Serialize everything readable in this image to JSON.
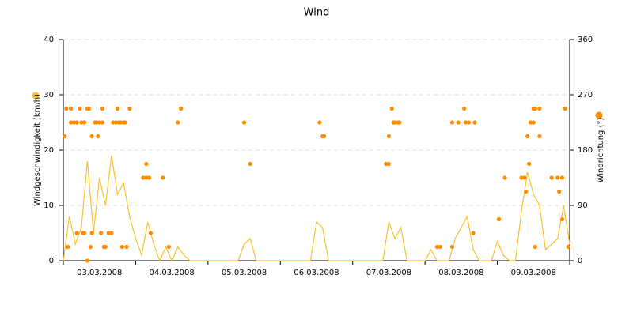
{
  "chart_data": {
    "type": "line",
    "title": "Wind",
    "xlim": [
      0,
      168
    ],
    "xticks": [
      {
        "value": 12,
        "label": "03.03.2008"
      },
      {
        "value": 36,
        "label": "04.03.2008"
      },
      {
        "value": 60,
        "label": "05.03.2008"
      },
      {
        "value": 84,
        "label": "06.03.2008"
      },
      {
        "value": 108,
        "label": "07.03.2008"
      },
      {
        "value": 132,
        "label": "08.03.2008"
      },
      {
        "value": 156,
        "label": "09.03.2008"
      }
    ],
    "ylim": [
      0,
      40
    ],
    "yticks": [
      0,
      10,
      20,
      30,
      40
    ],
    "y2lim": [
      0,
      360
    ],
    "y2ticks": [
      0,
      90,
      180,
      270,
      360
    ],
    "grid": true,
    "series": [
      {
        "name": "Windgeschwindigkeit (km/h)",
        "type": "line",
        "color": "#f9c22e",
        "x": [
          0,
          2,
          4,
          6,
          8,
          10,
          12,
          14,
          16,
          18,
          20,
          22,
          24,
          26,
          28,
          30,
          32,
          34,
          36,
          38,
          40,
          42,
          44,
          46,
          48,
          50,
          52,
          54,
          56,
          58,
          60,
          62,
          64,
          66,
          68,
          70,
          72,
          74,
          76,
          78,
          80,
          82,
          84,
          86,
          88,
          90,
          92,
          94,
          96,
          98,
          100,
          102,
          104,
          106,
          108,
          110,
          112,
          114,
          116,
          118,
          120,
          122,
          124,
          126,
          128,
          130,
          132,
          134,
          136,
          138,
          140,
          142,
          144,
          146,
          148,
          150,
          152,
          154,
          156,
          158,
          160,
          162,
          164,
          166,
          168
        ],
        "values": [
          0,
          8,
          3,
          6,
          18,
          5,
          15,
          10,
          19,
          12,
          14,
          8,
          4,
          1,
          7,
          3,
          0,
          2.5,
          0,
          2.5,
          1,
          0,
          0,
          0,
          0,
          0,
          0,
          0,
          0,
          0,
          3,
          4,
          0,
          0,
          0,
          0,
          0,
          0,
          0,
          0,
          0,
          0,
          7,
          6,
          0,
          0,
          0,
          0,
          0,
          0,
          0,
          0,
          0,
          0,
          7,
          4,
          6,
          0,
          0,
          0,
          0,
          2,
          0,
          0,
          0,
          4,
          6,
          8,
          2,
          0,
          0,
          0,
          3.5,
          1,
          0,
          0,
          9,
          16,
          12,
          10,
          2,
          3,
          4,
          10,
          3
        ]
      },
      {
        "name": "Windrichtung (°)",
        "type": "scatter",
        "axis": "y2",
        "color": "#ff8c00",
        "x": [
          0.5,
          1,
          1.5,
          2.5,
          2.5,
          3.5,
          4.5,
          4.5,
          5.5,
          6,
          6.5,
          7,
          7,
          8,
          8.5,
          8,
          9,
          9.5,
          9.5,
          10.5,
          11,
          11.5,
          12,
          12.5,
          13,
          13,
          13.5,
          14,
          15,
          16,
          16.5,
          17.5,
          18,
          18.5,
          19,
          19.5,
          20,
          20.5,
          21,
          22,
          26.5,
          27.5,
          27.5,
          28.5,
          29,
          33,
          35,
          38,
          39,
          60,
          62,
          85,
          86,
          86.5,
          107,
          108,
          108,
          109,
          109.5,
          110,
          111,
          111.5,
          124,
          125,
          129,
          129,
          131,
          133,
          133.5,
          134.5,
          136,
          136.5,
          144.5,
          146.5,
          152,
          153,
          153.5,
          154,
          154.5,
          155,
          156,
          156,
          156.5,
          156.5,
          158,
          158,
          162,
          164,
          164.5,
          165.5,
          165.5,
          166.5,
          167.5
        ],
        "values": [
          202.5,
          247.5,
          22.5,
          247.5,
          225,
          225,
          45,
          225,
          247.5,
          225,
          45,
          45,
          225,
          247.5,
          247.5,
          0,
          22.5,
          202.5,
          45,
          225,
          225,
          202.5,
          225,
          45,
          247.5,
          225,
          22.5,
          22.5,
          45,
          45,
          225,
          225,
          247.5,
          225,
          225,
          22.5,
          225,
          225,
          22.5,
          247.5,
          135,
          157.5,
          135,
          135,
          45,
          135,
          22.5,
          225,
          247.5,
          225,
          157.5,
          225,
          202.5,
          202.5,
          157.5,
          157.5,
          202.5,
          247.5,
          225,
          225,
          225,
          225,
          22.5,
          22.5,
          22.5,
          225,
          225,
          247.5,
          225,
          225,
          45,
          225,
          67.5,
          135,
          135,
          135,
          112.5,
          202.5,
          157.5,
          225,
          247.5,
          225,
          247.5,
          22.5,
          247.5,
          202.5,
          135,
          135,
          112.5,
          135,
          67.5,
          247.5,
          22.5
        ]
      }
    ]
  }
}
